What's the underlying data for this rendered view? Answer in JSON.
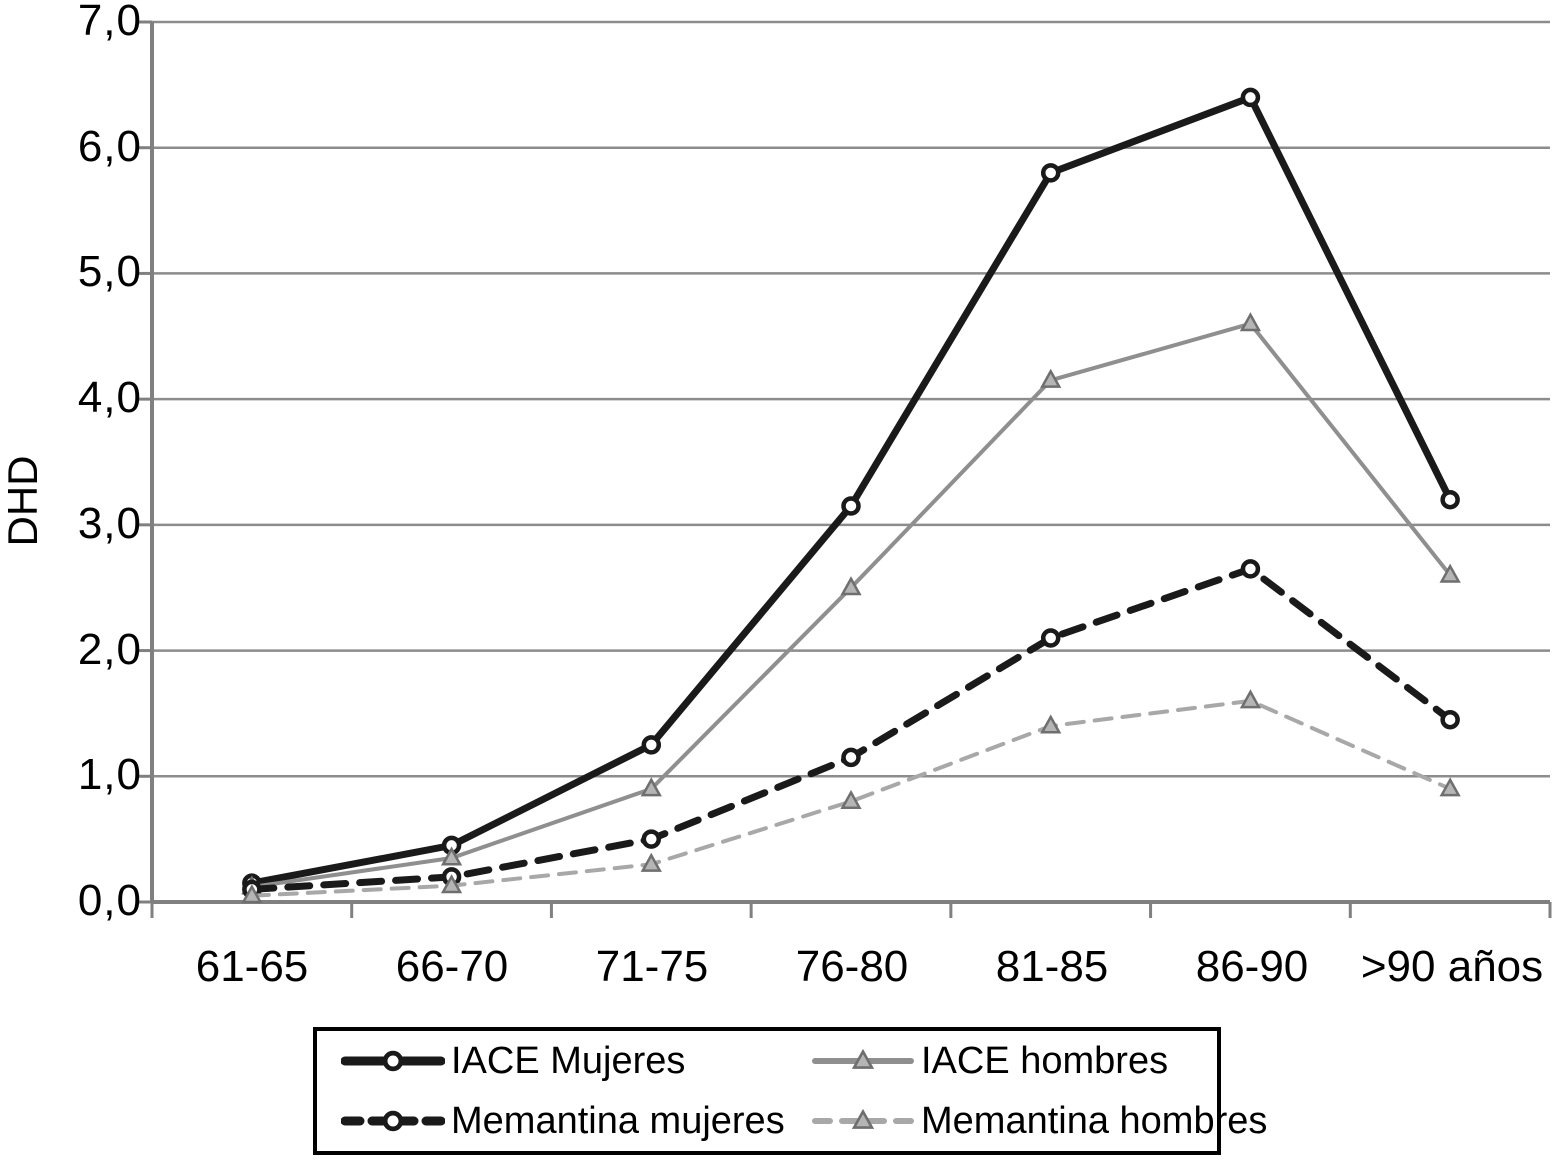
{
  "chart_data": {
    "type": "line",
    "title": "",
    "xlabel": "",
    "ylabel": "DHD",
    "ylim": [
      0,
      7
    ],
    "grid": true,
    "legend_position": "bottom-box",
    "y_tick_labels": [
      "7,0",
      "6,0",
      "5,0",
      "4,0",
      "3,0",
      "2,0",
      "1,0",
      "0,0"
    ],
    "categories": [
      "61-65",
      "66-70",
      "71-75",
      "76-80",
      "81-85",
      "86-90",
      ">90 años"
    ],
    "series": [
      {
        "name": "IACE Mujeres",
        "values": [
          0.15,
          0.45,
          1.25,
          3.15,
          5.8,
          6.4,
          3.2
        ],
        "color": "#1a1a1a",
        "line": "solid",
        "marker": "circle",
        "width": 7
      },
      {
        "name": "IACE hombres",
        "values": [
          0.12,
          0.35,
          0.9,
          2.5,
          4.15,
          4.6,
          2.6
        ],
        "color": "#8f8f8f",
        "line": "solid",
        "marker": "triangle",
        "width": 4
      },
      {
        "name": "Memantina mujeres",
        "values": [
          0.1,
          0.2,
          0.5,
          1.15,
          2.1,
          2.65,
          1.45
        ],
        "color": "#1a1a1a",
        "line": "dashed",
        "marker": "circle",
        "width": 7
      },
      {
        "name": "Memantina hombres",
        "values": [
          0.05,
          0.13,
          0.3,
          0.8,
          1.4,
          1.6,
          0.9
        ],
        "color": "#a8a8a8",
        "line": "dashed",
        "marker": "triangle",
        "width": 4
      }
    ],
    "colors": {
      "grid": "#8c8c8c",
      "axis": "#808080",
      "marker_fill": "#ffffff",
      "triangle_fill": "#b5b5b5",
      "triangle_stroke": "#6f6f6f",
      "legend_border": "#000000",
      "text": "#000000"
    }
  }
}
